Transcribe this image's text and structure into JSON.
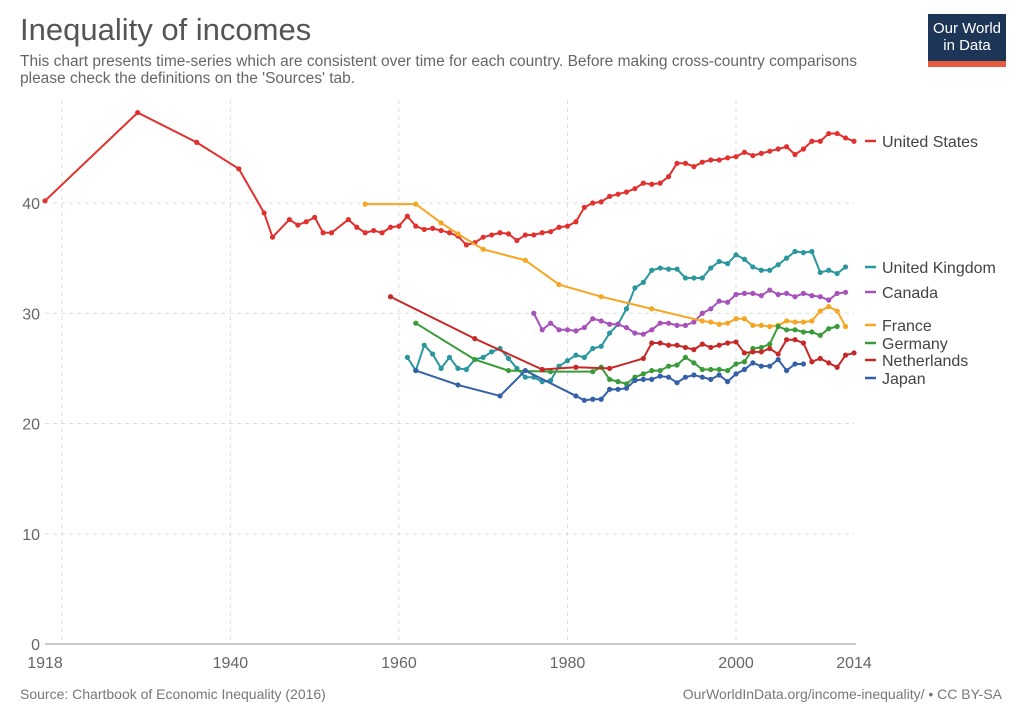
{
  "title": "Inequality of incomes",
  "subtitle": "This chart presents time-series which are consistent over time for each country. Before making cross-country comparisons please check the definitions on the 'Sources' tab.",
  "logo": "Our World in Data",
  "source": "Source: Chartbook of Economic Inequality (2016)",
  "license": "OurWorldInData.org/income-inequality/ • CC BY-SA",
  "chart_data": {
    "type": "line",
    "xlim": [
      1918,
      2014
    ],
    "ylim": [
      0,
      48
    ],
    "x_ticks": [
      "1918",
      "1940",
      "1960",
      "1980",
      "2000",
      "2014"
    ],
    "y_ticks": [
      "0",
      "10",
      "20",
      "30",
      "40"
    ],
    "grid": true,
    "legend_placement": "right",
    "series": [
      {
        "name": "United States",
        "color": "#e0312f",
        "points": [
          [
            1918,
            40.2
          ],
          [
            1929,
            48.2
          ],
          [
            1936,
            45.5
          ],
          [
            1941,
            43.1
          ],
          [
            1944,
            39.1
          ],
          [
            1945,
            36.9
          ],
          [
            1947,
            38.5
          ],
          [
            1948,
            38.0
          ],
          [
            1949,
            38.3
          ],
          [
            1950,
            38.7
          ],
          [
            1951,
            37.3
          ],
          [
            1952,
            37.3
          ],
          [
            1954,
            38.5
          ],
          [
            1955,
            37.8
          ],
          [
            1956,
            37.3
          ],
          [
            1957,
            37.5
          ],
          [
            1958,
            37.3
          ],
          [
            1959,
            37.8
          ],
          [
            1960,
            37.9
          ],
          [
            1961,
            38.8
          ],
          [
            1962,
            37.9
          ],
          [
            1963,
            37.6
          ],
          [
            1964,
            37.7
          ],
          [
            1965,
            37.5
          ],
          [
            1966,
            37.3
          ],
          [
            1967,
            37.0
          ],
          [
            1968,
            36.2
          ],
          [
            1969,
            36.4
          ],
          [
            1970,
            36.9
          ],
          [
            1971,
            37.1
          ],
          [
            1972,
            37.3
          ],
          [
            1973,
            37.2
          ],
          [
            1974,
            36.6
          ],
          [
            1975,
            37.1
          ],
          [
            1976,
            37.1
          ],
          [
            1977,
            37.3
          ],
          [
            1978,
            37.4
          ],
          [
            1979,
            37.8
          ],
          [
            1980,
            37.9
          ],
          [
            1981,
            38.3
          ],
          [
            1982,
            39.6
          ],
          [
            1983,
            40.0
          ],
          [
            1984,
            40.1
          ],
          [
            1985,
            40.6
          ],
          [
            1986,
            40.8
          ],
          [
            1987,
            41.0
          ],
          [
            1988,
            41.3
          ],
          [
            1989,
            41.8
          ],
          [
            1990,
            41.7
          ],
          [
            1991,
            41.8
          ],
          [
            1992,
            42.4
          ],
          [
            1993,
            43.6
          ],
          [
            1994,
            43.6
          ],
          [
            1995,
            43.3
          ],
          [
            1996,
            43.7
          ],
          [
            1997,
            43.9
          ],
          [
            1998,
            43.9
          ],
          [
            1999,
            44.1
          ],
          [
            2000,
            44.2
          ],
          [
            2001,
            44.6
          ],
          [
            2002,
            44.3
          ],
          [
            2003,
            44.5
          ],
          [
            2004,
            44.7
          ],
          [
            2005,
            44.9
          ],
          [
            2006,
            45.1
          ],
          [
            2007,
            44.4
          ],
          [
            2008,
            44.9
          ],
          [
            2009,
            45.6
          ],
          [
            2010,
            45.6
          ],
          [
            2011,
            46.3
          ],
          [
            2012,
            46.3
          ],
          [
            2013,
            45.9
          ],
          [
            2014,
            45.6
          ]
        ]
      },
      {
        "name": "United Kingdom",
        "color": "#2a969e",
        "points": [
          [
            1961,
            26.0
          ],
          [
            1962,
            24.8
          ],
          [
            1963,
            27.1
          ],
          [
            1964,
            26.3
          ],
          [
            1965,
            25.0
          ],
          [
            1966,
            26.0
          ],
          [
            1967,
            25.0
          ],
          [
            1968,
            24.9
          ],
          [
            1969,
            25.8
          ],
          [
            1970,
            26.0
          ],
          [
            1971,
            26.5
          ],
          [
            1972,
            26.8
          ],
          [
            1973,
            25.9
          ],
          [
            1974,
            25.0
          ],
          [
            1975,
            24.2
          ],
          [
            1976,
            24.2
          ],
          [
            1977,
            23.8
          ],
          [
            1978,
            23.9
          ],
          [
            1979,
            25.2
          ],
          [
            1980,
            25.7
          ],
          [
            1981,
            26.2
          ],
          [
            1982,
            26.0
          ],
          [
            1983,
            26.8
          ],
          [
            1984,
            27.0
          ],
          [
            1985,
            28.2
          ],
          [
            1986,
            29.0
          ],
          [
            1987,
            30.4
          ],
          [
            1988,
            32.3
          ],
          [
            1989,
            32.8
          ],
          [
            1990,
            33.9
          ],
          [
            1991,
            34.1
          ],
          [
            1992,
            34.0
          ],
          [
            1993,
            34.0
          ],
          [
            1994,
            33.2
          ],
          [
            1995,
            33.2
          ],
          [
            1996,
            33.2
          ],
          [
            1997,
            34.1
          ],
          [
            1998,
            34.7
          ],
          [
            1999,
            34.5
          ],
          [
            2000,
            35.3
          ],
          [
            2001,
            34.9
          ],
          [
            2002,
            34.2
          ],
          [
            2003,
            33.9
          ],
          [
            2004,
            33.9
          ],
          [
            2005,
            34.4
          ],
          [
            2006,
            35.0
          ],
          [
            2007,
            35.6
          ],
          [
            2008,
            35.5
          ],
          [
            2009,
            35.6
          ],
          [
            2010,
            33.7
          ],
          [
            2011,
            33.9
          ],
          [
            2012,
            33.6
          ],
          [
            2013,
            34.2
          ]
        ]
      },
      {
        "name": "Canada",
        "color": "#a652ba",
        "points": [
          [
            1976,
            30.0
          ],
          [
            1977,
            28.5
          ],
          [
            1978,
            29.1
          ],
          [
            1979,
            28.5
          ],
          [
            1980,
            28.5
          ],
          [
            1981,
            28.4
          ],
          [
            1982,
            28.7
          ],
          [
            1983,
            29.5
          ],
          [
            1984,
            29.3
          ],
          [
            1985,
            29.0
          ],
          [
            1986,
            29.0
          ],
          [
            1987,
            28.7
          ],
          [
            1988,
            28.2
          ],
          [
            1989,
            28.1
          ],
          [
            1990,
            28.5
          ],
          [
            1991,
            29.1
          ],
          [
            1992,
            29.1
          ],
          [
            1993,
            28.9
          ],
          [
            1994,
            28.9
          ],
          [
            1995,
            29.2
          ],
          [
            1996,
            30.0
          ],
          [
            1997,
            30.4
          ],
          [
            1998,
            31.1
          ],
          [
            1999,
            31.0
          ],
          [
            2000,
            31.7
          ],
          [
            2001,
            31.8
          ],
          [
            2002,
            31.8
          ],
          [
            2003,
            31.6
          ],
          [
            2004,
            32.1
          ],
          [
            2005,
            31.7
          ],
          [
            2006,
            31.8
          ],
          [
            2007,
            31.5
          ],
          [
            2008,
            31.8
          ],
          [
            2009,
            31.6
          ],
          [
            2010,
            31.5
          ],
          [
            2011,
            31.2
          ],
          [
            2012,
            31.8
          ],
          [
            2013,
            31.9
          ]
        ]
      },
      {
        "name": "France",
        "color": "#f5a623",
        "points": [
          [
            1956,
            39.9
          ],
          [
            1962,
            39.9
          ],
          [
            1965,
            38.2
          ],
          [
            1967,
            37.2
          ],
          [
            1970,
            35.8
          ],
          [
            1975,
            34.8
          ],
          [
            1979,
            32.6
          ],
          [
            1984,
            31.5
          ],
          [
            1990,
            30.4
          ],
          [
            1996,
            29.3
          ],
          [
            1997,
            29.2
          ],
          [
            1998,
            29.0
          ],
          [
            1999,
            29.1
          ],
          [
            2000,
            29.5
          ],
          [
            2001,
            29.5
          ],
          [
            2002,
            28.9
          ],
          [
            2003,
            28.9
          ],
          [
            2004,
            28.8
          ],
          [
            2005,
            28.9
          ],
          [
            2006,
            29.3
          ],
          [
            2007,
            29.2
          ],
          [
            2008,
            29.2
          ],
          [
            2009,
            29.3
          ],
          [
            2010,
            30.2
          ],
          [
            2011,
            30.6
          ],
          [
            2012,
            30.2
          ],
          [
            2013,
            28.8
          ]
        ]
      },
      {
        "name": "Germany",
        "color": "#3a9b3a",
        "points": [
          [
            1962,
            29.1
          ],
          [
            1969,
            25.8
          ],
          [
            1973,
            24.8
          ],
          [
            1978,
            24.7
          ],
          [
            1983,
            24.7
          ],
          [
            1984,
            25.1
          ],
          [
            1985,
            24.0
          ],
          [
            1986,
            23.8
          ],
          [
            1987,
            23.6
          ],
          [
            1988,
            24.2
          ],
          [
            1989,
            24.5
          ],
          [
            1990,
            24.8
          ],
          [
            1991,
            24.8
          ],
          [
            1992,
            25.2
          ],
          [
            1993,
            25.3
          ],
          [
            1994,
            26.0
          ],
          [
            1995,
            25.5
          ],
          [
            1996,
            24.9
          ],
          [
            1997,
            24.9
          ],
          [
            1998,
            24.9
          ],
          [
            1999,
            24.8
          ],
          [
            2000,
            25.4
          ],
          [
            2001,
            25.6
          ],
          [
            2002,
            26.8
          ],
          [
            2003,
            26.9
          ],
          [
            2004,
            27.2
          ],
          [
            2005,
            28.8
          ],
          [
            2006,
            28.5
          ],
          [
            2007,
            28.5
          ],
          [
            2008,
            28.3
          ],
          [
            2009,
            28.3
          ],
          [
            2010,
            28.0
          ],
          [
            2011,
            28.6
          ],
          [
            2012,
            28.8
          ]
        ]
      },
      {
        "name": "Netherlands",
        "color": "#c62828",
        "points": [
          [
            1959,
            31.5
          ],
          [
            1969,
            27.7
          ],
          [
            1977,
            24.9
          ],
          [
            1981,
            25.1
          ],
          [
            1985,
            25.0
          ],
          [
            1989,
            25.9
          ],
          [
            1990,
            27.3
          ],
          [
            1991,
            27.3
          ],
          [
            1992,
            27.1
          ],
          [
            1993,
            27.1
          ],
          [
            1994,
            26.9
          ],
          [
            1995,
            26.7
          ],
          [
            1996,
            27.2
          ],
          [
            1997,
            26.9
          ],
          [
            1998,
            27.1
          ],
          [
            1999,
            27.3
          ],
          [
            2000,
            27.4
          ],
          [
            2001,
            26.4
          ],
          [
            2002,
            26.5
          ],
          [
            2003,
            26.5
          ],
          [
            2004,
            26.8
          ],
          [
            2005,
            26.3
          ],
          [
            2006,
            27.6
          ],
          [
            2007,
            27.6
          ],
          [
            2008,
            27.3
          ],
          [
            2009,
            25.6
          ],
          [
            2010,
            25.9
          ],
          [
            2011,
            25.5
          ],
          [
            2012,
            25.1
          ],
          [
            2013,
            26.2
          ],
          [
            2014,
            26.4
          ]
        ]
      },
      {
        "name": "Japan",
        "color": "#3360a9",
        "points": [
          [
            1962,
            24.8
          ],
          [
            1967,
            23.5
          ],
          [
            1972,
            22.5
          ],
          [
            1975,
            24.8
          ],
          [
            1981,
            22.5
          ],
          [
            1982,
            22.1
          ],
          [
            1983,
            22.2
          ],
          [
            1984,
            22.2
          ],
          [
            1985,
            23.1
          ],
          [
            1986,
            23.1
          ],
          [
            1987,
            23.2
          ],
          [
            1988,
            23.9
          ],
          [
            1989,
            24.0
          ],
          [
            1990,
            24.0
          ],
          [
            1991,
            24.3
          ],
          [
            1992,
            24.2
          ],
          [
            1993,
            23.7
          ],
          [
            1994,
            24.2
          ],
          [
            1995,
            24.4
          ],
          [
            1996,
            24.2
          ],
          [
            1997,
            24.0
          ],
          [
            1998,
            24.4
          ],
          [
            1999,
            23.8
          ],
          [
            2000,
            24.5
          ],
          [
            2001,
            24.9
          ],
          [
            2002,
            25.5
          ],
          [
            2003,
            25.2
          ],
          [
            2004,
            25.2
          ],
          [
            2005,
            25.8
          ],
          [
            2006,
            24.8
          ],
          [
            2007,
            25.4
          ],
          [
            2008,
            25.4
          ]
        ]
      }
    ]
  }
}
